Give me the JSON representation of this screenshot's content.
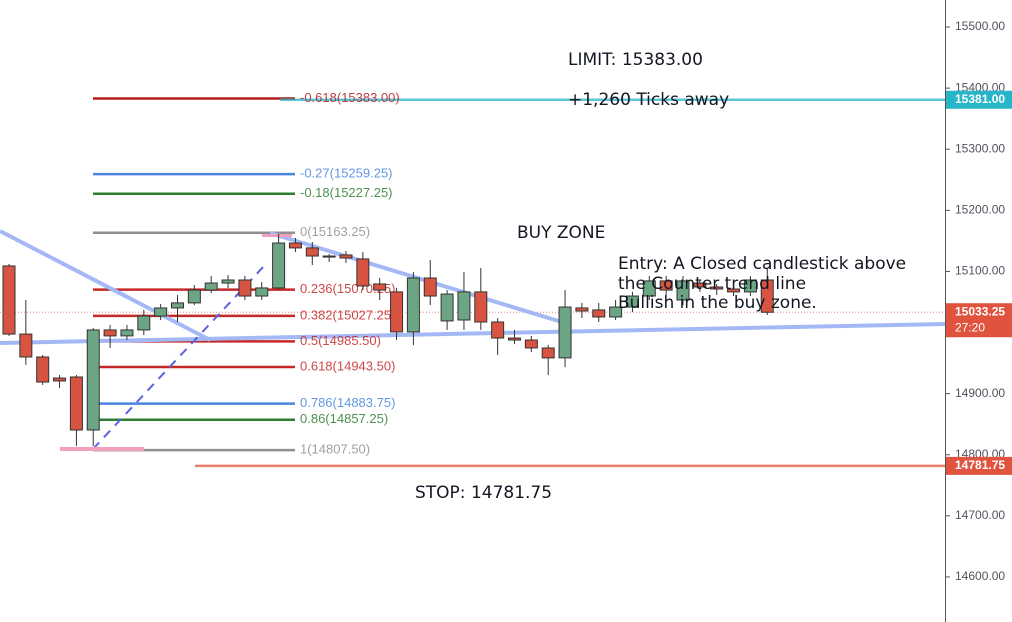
{
  "chart_data": {
    "type": "candlestick",
    "up_color": "#6ba583",
    "down_color": "#d75442",
    "ylim": [
      14526.25,
      15544.25
    ],
    "yticks": [
      {
        "value": 14600,
        "label": "14600.00"
      },
      {
        "value": 14700,
        "label": "14700.00"
      },
      {
        "value": 14800,
        "label": "14800.00"
      },
      {
        "value": 14900,
        "label": "14900.00"
      },
      {
        "value": 15000,
        "label": "15000.00"
      },
      {
        "value": 15100,
        "label": "15100.00"
      },
      {
        "value": 15200,
        "label": "15200.00"
      },
      {
        "value": 15300,
        "label": "15300.00"
      },
      {
        "value": 15400,
        "label": "15400.00"
      },
      {
        "value": 15500,
        "label": "15500.00"
      }
    ],
    "open": [
      15109,
      14997.5,
      14960,
      14925.5,
      14927.25,
      14840.5,
      15004.25,
      14994.5,
      15004.25,
      15027,
      15040.25,
      15048.5,
      15069.5,
      15081,
      15086,
      15059.75,
      15073,
      15146.5,
      15138.5,
      15125.25,
      15127,
      15120.5,
      15079.5,
      15066.5,
      15001,
      15089.25,
      15019,
      15020.5,
      15066.5,
      15017.25,
      14991,
      14987.75,
      14974.75,
      14958.5,
      15040.25,
      15037,
      15025.5,
      15041.75,
      15059.75,
      15084.5,
      15053.25,
      15081,
      15074.5,
      15071.25,
      15066.5,
      15086
    ],
    "high": [
      15112.25,
      15053.25,
      14963.25,
      14930.5,
      14930.5,
      15007.5,
      15012.5,
      15012.5,
      15037,
      15046.75,
      15061.5,
      15077.75,
      15092.5,
      15094.25,
      15092.5,
      15082.75,
      15161.25,
      15154.75,
      15148.25,
      15128.5,
      15133.5,
      15131.75,
      15089.25,
      15073,
      15099,
      15118.75,
      15069.5,
      15099,
      15105.5,
      15023.75,
      15004.25,
      14994.5,
      14979.5,
      15069.5,
      15048.5,
      15048.5,
      15053.25,
      15066.5,
      15092.5,
      15092.5,
      15092.5,
      15086,
      15079.5,
      15077.75,
      15092.5,
      15105.5
    ],
    "low": [
      14994.5,
      14947,
      14914.25,
      14909.25,
      14814.25,
      14814.25,
      14974.75,
      14987.75,
      14996,
      15020.5,
      15017.25,
      15045,
      15064.75,
      15073,
      15053.25,
      15053.25,
      15069.5,
      15131.75,
      15110.5,
      15115.5,
      15113.75,
      15069.5,
      15053.25,
      14987.75,
      14979.5,
      15045,
      15004.25,
      15004.25,
      15004.25,
      14963.25,
      14981.25,
      14968.25,
      14930.5,
      14943.5,
      15023.75,
      15017.25,
      15020.5,
      15033.5,
      15053.25,
      15061.5,
      15045,
      15066.5,
      15061.5,
      15059.75,
      15059.75,
      15028.75
    ],
    "close": [
      14997.5,
      14960,
      14919,
      14920.75,
      14840.5,
      15004.25,
      14994.5,
      15004.25,
      15027,
      15040.25,
      15048.5,
      15069.5,
      15081,
      15086,
      15059.75,
      15073,
      15146.5,
      15138.5,
      15125.25,
      15123.5,
      15122,
      15076.25,
      15069.5,
      15001,
      15089.25,
      15059.75,
      15063,
      15066.5,
      15017.25,
      14991,
      14987.75,
      14974.75,
      14958.5,
      15041.75,
      15035.25,
      15025.5,
      15041.75,
      15059.75,
      15084.5,
      15069.5,
      15084.5,
      15074.5,
      15071.25,
      15066.5,
      15086,
      15033.25
    ],
    "fib_levels": [
      {
        "label": "-0.618(15383.00)",
        "value": 15383,
        "color": "#b71c1c"
      },
      {
        "label": "-0.27(15259.25)",
        "value": 15259.25,
        "color": "#4a86e0"
      },
      {
        "label": "-0.18(15227.25)",
        "value": 15227.25,
        "color": "#2e7d32"
      },
      {
        "label": "0(15163.25)",
        "value": 15163.25,
        "color": "#909090"
      },
      {
        "label": "0.236(15070.25)",
        "value": 15070.25,
        "color": "#c62828"
      },
      {
        "label": "0.382(15027.25)",
        "value": 15027.25,
        "color": "#c62828"
      },
      {
        "label": "0.5(14985.50)",
        "value": 14985.5,
        "color": "#c62828"
      },
      {
        "label": "0.618(14943.50)",
        "value": 14943.5,
        "color": "#c62828"
      },
      {
        "label": "0.786(14883.75)",
        "value": 14883.75,
        "color": "#4a86e0"
      },
      {
        "label": "0.86(14857.25)",
        "value": 14857.25,
        "color": "#2e7d32"
      },
      {
        "label": "1(14807.50)",
        "value": 14807.5,
        "color": "#909090"
      }
    ],
    "price_tags": [
      {
        "label": "15381.00",
        "value": 15381,
        "color": "#26b5c9",
        "line": "solid"
      },
      {
        "label": "15033.25",
        "value": 15033.25,
        "color": "#e0533f",
        "line": "dotted",
        "timer": "27:20"
      },
      {
        "label": "14781.75",
        "value": 14781.75,
        "color": "#e0533f",
        "line": "solid"
      }
    ],
    "annotations": {
      "limit": "LIMIT: 15383.00",
      "ticks": "+1,260 Ticks away",
      "buy_zone": "BUY ZONE",
      "entry": [
        "Entry: A Closed candlestick above",
        "the Counter trend line",
        "Bullish in the buy zone."
      ],
      "stop": "STOP: 14781.75"
    }
  }
}
